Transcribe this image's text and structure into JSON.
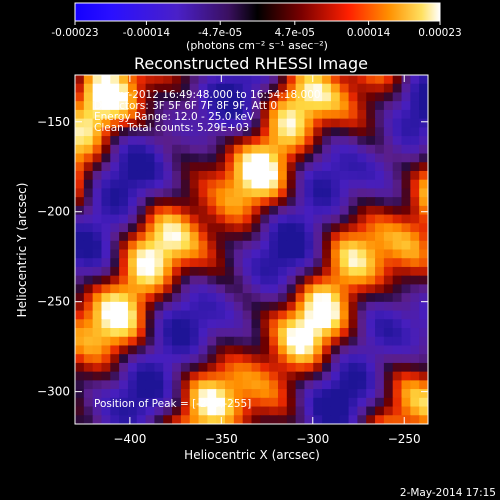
{
  "colorbar": {
    "tick_labels": [
      "-0.00023",
      "-0.00014",
      "-4.7e-05",
      "4.7e-05",
      "0.00014",
      "0.00023"
    ],
    "tick_values": [
      -0.00023,
      -0.00014,
      -4.7e-05,
      4.7e-05,
      0.00014,
      0.00023
    ],
    "range": [
      -0.00023,
      0.00023
    ],
    "units": "(photons cm⁻² s⁻¹ asec⁻²)"
  },
  "chart_data": {
    "type": "heatmap",
    "title": "Reconstructed RHESSI Image",
    "xlabel": "Heliocentric X (arcsec)",
    "ylabel": "Heliocentric Y (arcsec)",
    "xlim": [
      -430,
      -237
    ],
    "ylim": [
      -318,
      -124
    ],
    "x_ticks": [
      -400,
      -350,
      -300,
      -250
    ],
    "y_ticks": [
      -300,
      -250,
      -200,
      -150
    ],
    "annotations": [
      "22-Apr-2012 16:49:48.000 to 16:54:18.000",
      "Detectors: 3F 5F 6F 7F 8F 9F, Att 0",
      "Energy Range: 12.0 - 25.0 keV",
      "Clean    Total counts: 5.29E+03"
    ],
    "peak_label": "Position of Peak = [-255,-255]",
    "peak": [
      -255,
      -255
    ]
  },
  "footer": {
    "timestamp": "2-May-2014 17:15"
  }
}
